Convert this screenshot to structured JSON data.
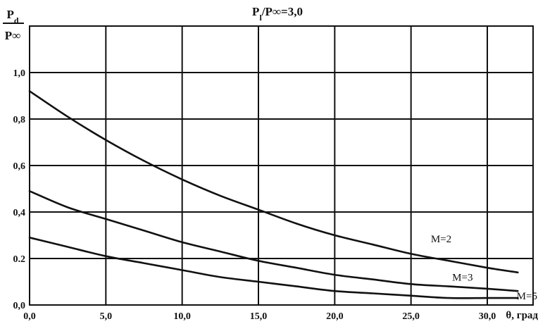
{
  "chart_data": {
    "type": "line",
    "title": "P₁/P∞=3,0",
    "ylabel": {
      "numerator": "Pd",
      "denominator": "P∞"
    },
    "xlabel": "θ, град",
    "xlim": [
      0,
      33
    ],
    "ylim": [
      0,
      1.2
    ],
    "x_ticks": [
      0,
      5,
      10,
      15,
      20,
      25,
      30
    ],
    "x_tick_labels": [
      "0,0",
      "5,0",
      "10,0",
      "15,0",
      "20,0",
      "25,0",
      "30,0"
    ],
    "y_ticks": [
      0,
      0.2,
      0.4,
      0.6,
      0.8,
      1.0
    ],
    "y_tick_labels": [
      "0,0",
      "0.2",
      "0,4",
      "0,6",
      "0,8",
      "1,0"
    ],
    "grid": true,
    "series": [
      {
        "name": "M=2",
        "x": [
          0,
          2.5,
          5,
          7.5,
          10,
          12.5,
          15,
          17.5,
          20,
          22.5,
          25,
          27.5,
          30,
          32
        ],
        "y": [
          0.92,
          0.81,
          0.71,
          0.62,
          0.54,
          0.47,
          0.41,
          0.35,
          0.3,
          0.26,
          0.22,
          0.19,
          0.16,
          0.14
        ]
      },
      {
        "name": "M=3",
        "x": [
          0,
          2.5,
          5,
          7.5,
          10,
          12.5,
          15,
          17.5,
          20,
          22.5,
          25,
          27.5,
          30,
          32
        ],
        "y": [
          0.49,
          0.42,
          0.37,
          0.32,
          0.27,
          0.23,
          0.19,
          0.16,
          0.13,
          0.11,
          0.09,
          0.08,
          0.07,
          0.06
        ]
      },
      {
        "name": "M=5",
        "x": [
          0,
          2.5,
          5,
          7.5,
          10,
          12.5,
          15,
          17.5,
          20,
          22.5,
          25,
          27.5,
          30,
          32
        ],
        "y": [
          0.29,
          0.25,
          0.21,
          0.18,
          0.15,
          0.12,
          0.1,
          0.08,
          0.06,
          0.05,
          0.04,
          0.03,
          0.03,
          0.03
        ]
      }
    ]
  }
}
